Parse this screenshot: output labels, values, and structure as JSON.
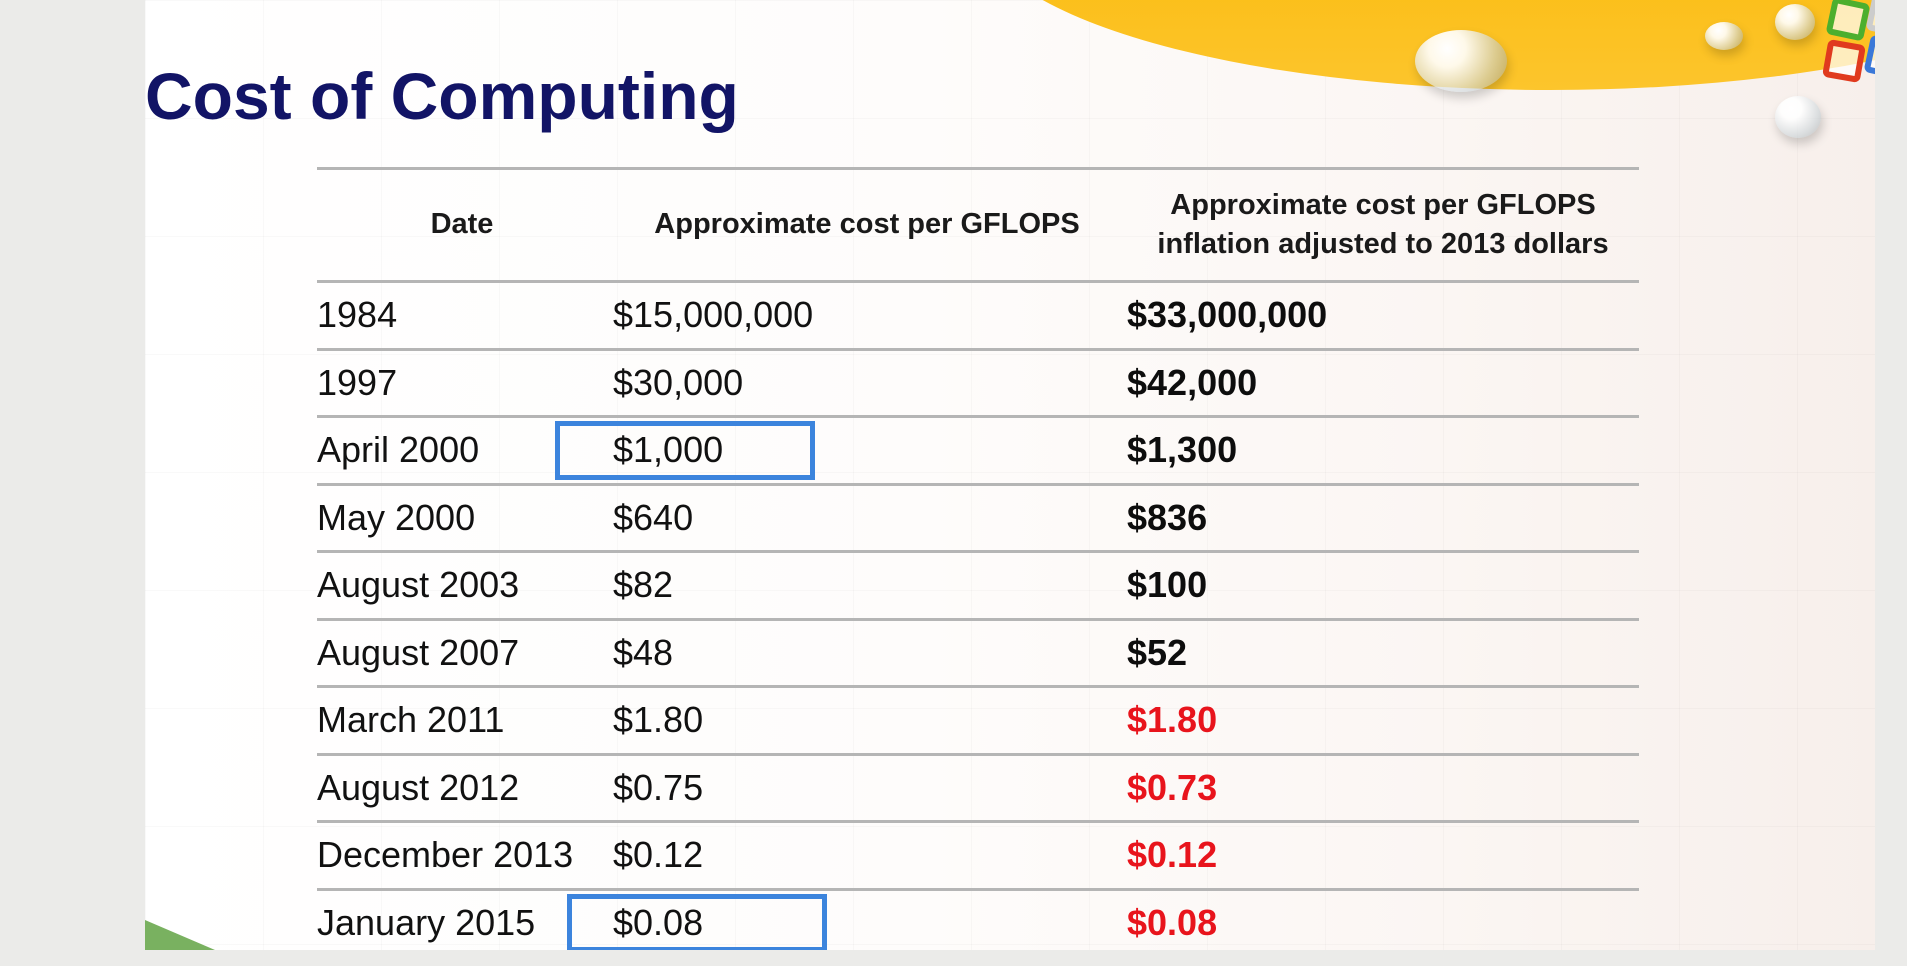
{
  "title": "Cost of Computing",
  "table": {
    "headers": {
      "date": "Date",
      "cost": "Approximate cost per GFLOPS",
      "adjusted_line1": "Approximate cost per GFLOPS",
      "adjusted_line2": "inflation adjusted to 2013 dollars"
    },
    "rows": [
      {
        "date": "1984",
        "cost": "$15,000,000",
        "adjusted": "$33,000,000",
        "adjusted_color": "dark",
        "highlight": false
      },
      {
        "date": "1997",
        "cost": "$30,000",
        "adjusted": "$42,000",
        "adjusted_color": "dark",
        "highlight": false
      },
      {
        "date": "April 2000",
        "cost": "$1,000",
        "adjusted": "$1,300",
        "adjusted_color": "dark",
        "highlight": true
      },
      {
        "date": "May 2000",
        "cost": "$640",
        "adjusted": "$836",
        "adjusted_color": "dark",
        "highlight": false
      },
      {
        "date": "August 2003",
        "cost": "$82",
        "adjusted": "$100",
        "adjusted_color": "dark",
        "highlight": false
      },
      {
        "date": "August 2007",
        "cost": "$48",
        "adjusted": "$52",
        "adjusted_color": "dark",
        "highlight": false
      },
      {
        "date": "March 2011",
        "cost": "$1.80",
        "adjusted": "$1.80",
        "adjusted_color": "red",
        "highlight": false
      },
      {
        "date": "August 2012",
        "cost": "$0.75",
        "adjusted": "$0.73",
        "adjusted_color": "red",
        "highlight": false
      },
      {
        "date": "December 2013",
        "cost": "$0.12",
        "adjusted": "$0.12",
        "adjusted_color": "red",
        "highlight": false
      },
      {
        "date": "January 2015",
        "cost": "$0.08",
        "adjusted": "$0.08",
        "adjusted_color": "red",
        "highlight": true
      }
    ]
  },
  "colors": {
    "title": "#121466",
    "highlight_box": "#3c84dd",
    "red_value": "#e8141c",
    "swoosh": "#f5b400"
  }
}
